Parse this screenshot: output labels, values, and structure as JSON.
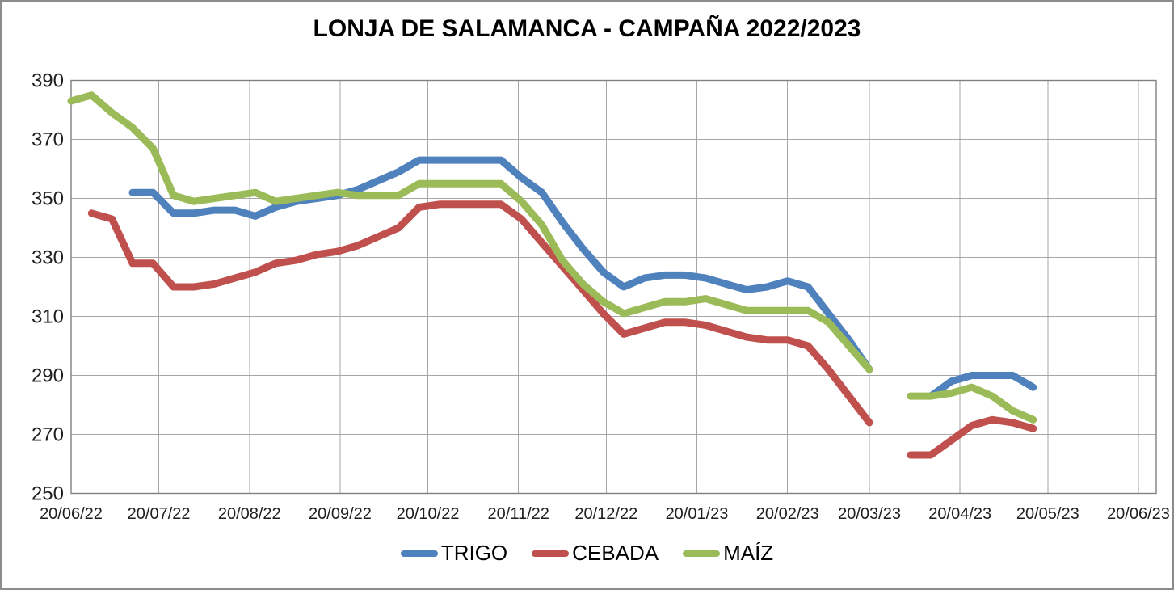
{
  "window": {
    "background": "#ffffff",
    "frame_border_color": "#8c8c8c",
    "gridline_color": "#a6a6a6",
    "plot_border_color": "#808080"
  },
  "chart_data": {
    "type": "line",
    "title": "LONJA DE SALAMANCA - CAMPAÑA 2022/2023",
    "grid": true,
    "legend_position": "bottom",
    "y_axis": {
      "min": 250,
      "max": 390,
      "tick_step": 20,
      "ticks": [
        390,
        370,
        350,
        330,
        310,
        290,
        270,
        250
      ]
    },
    "x_axis": {
      "tick_labels": [
        "20/06/22",
        "20/07/22",
        "20/08/22",
        "20/09/22",
        "20/10/22",
        "20/11/22",
        "20/12/22",
        "20/01/23",
        "20/02/23",
        "20/03/23",
        "20/04/23",
        "20/05/23",
        "20/06/23"
      ],
      "tick_day_offsets": [
        0,
        30,
        61,
        92,
        122,
        153,
        183,
        214,
        245,
        273,
        304,
        334,
        365
      ],
      "range_days": 365
    },
    "note": "points are [days_since_20/06/22, price]; weekly quotes; gap = no quotation weeks (late March 2023)",
    "series": [
      {
        "name": "TRIGO",
        "color": "#4F81BD",
        "segments": [
          [
            [
              21,
              352
            ],
            [
              28,
              352
            ],
            [
              35,
              345
            ],
            [
              42,
              345
            ],
            [
              49,
              346
            ],
            [
              56,
              346
            ],
            [
              63,
              344
            ],
            [
              70,
              347
            ],
            [
              77,
              349
            ],
            [
              84,
              350
            ],
            [
              91,
              351
            ],
            [
              98,
              353
            ],
            [
              105,
              356
            ],
            [
              112,
              359
            ],
            [
              119,
              363
            ],
            [
              126,
              363
            ],
            [
              133,
              363
            ],
            [
              140,
              363
            ],
            [
              147,
              363
            ],
            [
              154,
              357
            ],
            [
              161,
              352
            ],
            [
              168,
              342
            ],
            [
              175,
              333
            ],
            [
              182,
              325
            ],
            [
              189,
              320
            ],
            [
              196,
              323
            ],
            [
              203,
              324
            ],
            [
              210,
              324
            ],
            [
              217,
              323
            ],
            [
              224,
              321
            ],
            [
              231,
              319
            ],
            [
              238,
              320
            ],
            [
              245,
              322
            ],
            [
              252,
              320
            ],
            [
              259,
              311
            ],
            [
              266,
              302
            ],
            [
              273,
              292
            ]
          ],
          [
            [
              294,
              283
            ],
            [
              301,
              288
            ],
            [
              308,
              290
            ],
            [
              315,
              290
            ],
            [
              322,
              290
            ],
            [
              329,
              286
            ]
          ]
        ]
      },
      {
        "name": "CEBADA",
        "color": "#C0504D",
        "segments": [
          [
            [
              7,
              345
            ],
            [
              14,
              343
            ],
            [
              21,
              328
            ],
            [
              28,
              328
            ],
            [
              35,
              320
            ],
            [
              42,
              320
            ],
            [
              49,
              321
            ],
            [
              56,
              323
            ],
            [
              63,
              325
            ],
            [
              70,
              328
            ],
            [
              77,
              329
            ],
            [
              84,
              331
            ],
            [
              91,
              332
            ],
            [
              98,
              334
            ],
            [
              105,
              337
            ],
            [
              112,
              340
            ],
            [
              119,
              347
            ],
            [
              126,
              348
            ],
            [
              133,
              348
            ],
            [
              140,
              348
            ],
            [
              147,
              348
            ],
            [
              154,
              343
            ],
            [
              161,
              335
            ],
            [
              168,
              327
            ],
            [
              175,
              319
            ],
            [
              182,
              311
            ],
            [
              189,
              304
            ],
            [
              196,
              306
            ],
            [
              203,
              308
            ],
            [
              210,
              308
            ],
            [
              217,
              307
            ],
            [
              224,
              305
            ],
            [
              231,
              303
            ],
            [
              238,
              302
            ],
            [
              245,
              302
            ],
            [
              252,
              300
            ],
            [
              259,
              292
            ],
            [
              266,
              283
            ],
            [
              273,
              274
            ]
          ],
          [
            [
              287,
              263
            ],
            [
              294,
              263
            ],
            [
              301,
              268
            ],
            [
              308,
              273
            ],
            [
              315,
              275
            ],
            [
              322,
              274
            ],
            [
              329,
              272
            ]
          ]
        ]
      },
      {
        "name": "MAÍZ",
        "color": "#9BBB59",
        "segments": [
          [
            [
              0,
              383
            ],
            [
              7,
              385
            ],
            [
              14,
              379
            ],
            [
              21,
              374
            ],
            [
              28,
              367
            ],
            [
              35,
              351
            ],
            [
              42,
              349
            ],
            [
              49,
              350
            ],
            [
              56,
              351
            ],
            [
              63,
              352
            ],
            [
              70,
              349
            ],
            [
              77,
              350
            ],
            [
              84,
              351
            ],
            [
              91,
              352
            ],
            [
              98,
              351
            ],
            [
              105,
              351
            ],
            [
              112,
              351
            ],
            [
              119,
              355
            ],
            [
              126,
              355
            ],
            [
              133,
              355
            ],
            [
              140,
              355
            ],
            [
              147,
              355
            ],
            [
              154,
              349
            ],
            [
              161,
              341
            ],
            [
              168,
              329
            ],
            [
              175,
              321
            ],
            [
              182,
              315
            ],
            [
              189,
              311
            ],
            [
              196,
              313
            ],
            [
              203,
              315
            ],
            [
              210,
              315
            ],
            [
              217,
              316
            ],
            [
              224,
              314
            ],
            [
              231,
              312
            ],
            [
              238,
              312
            ],
            [
              245,
              312
            ],
            [
              252,
              312
            ],
            [
              259,
              308
            ],
            [
              266,
              300
            ],
            [
              273,
              292
            ]
          ],
          [
            [
              287,
              283
            ],
            [
              294,
              283
            ],
            [
              301,
              284
            ],
            [
              308,
              286
            ],
            [
              315,
              283
            ],
            [
              322,
              278
            ],
            [
              329,
              275
            ]
          ]
        ]
      }
    ]
  }
}
